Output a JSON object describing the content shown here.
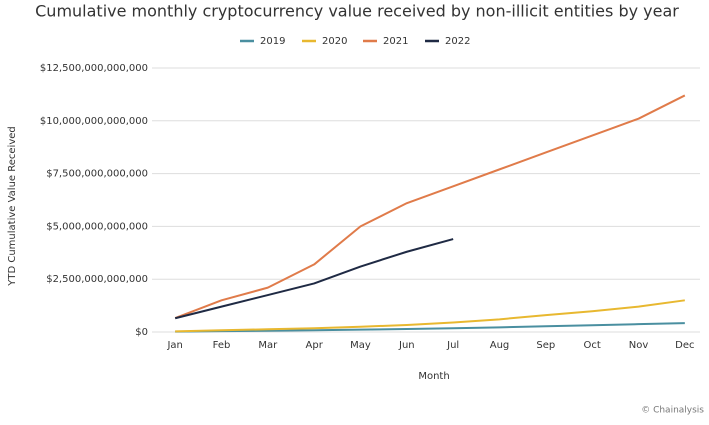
{
  "chart_data": {
    "type": "line",
    "title": "Cumulative monthly cryptocurrency value received by non-illicit entities by year",
    "x_label": "Month",
    "y_label": "YTD Cumulative Value Received",
    "source": "© Chainalysis",
    "categories": [
      "Jan",
      "Feb",
      "Mar",
      "Apr",
      "May",
      "Jun",
      "Jul",
      "Aug",
      "Sep",
      "Oct",
      "Nov",
      "Dec"
    ],
    "series": [
      {
        "name": "2019",
        "color": "#4a8fa0",
        "values": [
          20000000000,
          40000000000,
          60000000000,
          80000000000,
          110000000000,
          140000000000,
          180000000000,
          220000000000,
          270000000000,
          320000000000,
          370000000000,
          420000000000
        ]
      },
      {
        "name": "2020",
        "color": "#e8b830",
        "values": [
          30000000000,
          80000000000,
          130000000000,
          180000000000,
          250000000000,
          330000000000,
          450000000000,
          600000000000,
          800000000000,
          980000000000,
          1200000000000,
          1500000000000
        ]
      },
      {
        "name": "2021",
        "color": "#e07b4a",
        "values": [
          660000000000,
          1500000000000,
          2100000000000,
          3200000000000,
          5000000000000,
          6100000000000,
          6900000000000,
          7700000000000,
          8500000000000,
          9300000000000,
          10100000000000,
          11200000000000
        ]
      },
      {
        "name": "2022",
        "color": "#1f2a44",
        "values": [
          650000000000,
          1200000000000,
          1750000000000,
          2300000000000,
          3100000000000,
          3800000000000,
          4400000000000,
          null,
          null,
          null,
          null,
          null
        ]
      }
    ],
    "ylim": [
      0,
      12500000000000
    ],
    "yticks": [
      {
        "value": 0,
        "label": "$0"
      },
      {
        "value": 2500000000000,
        "label": "$2,500,000,000,000"
      },
      {
        "value": 5000000000000,
        "label": "$5,000,000,000,000"
      },
      {
        "value": 7500000000000,
        "label": "$7,500,000,000,000"
      },
      {
        "value": 10000000000000,
        "label": "$10,000,000,000,000"
      },
      {
        "value": 12500000000000,
        "label": "$12,500,000,000,000"
      }
    ],
    "grid": true,
    "legend": "top"
  }
}
